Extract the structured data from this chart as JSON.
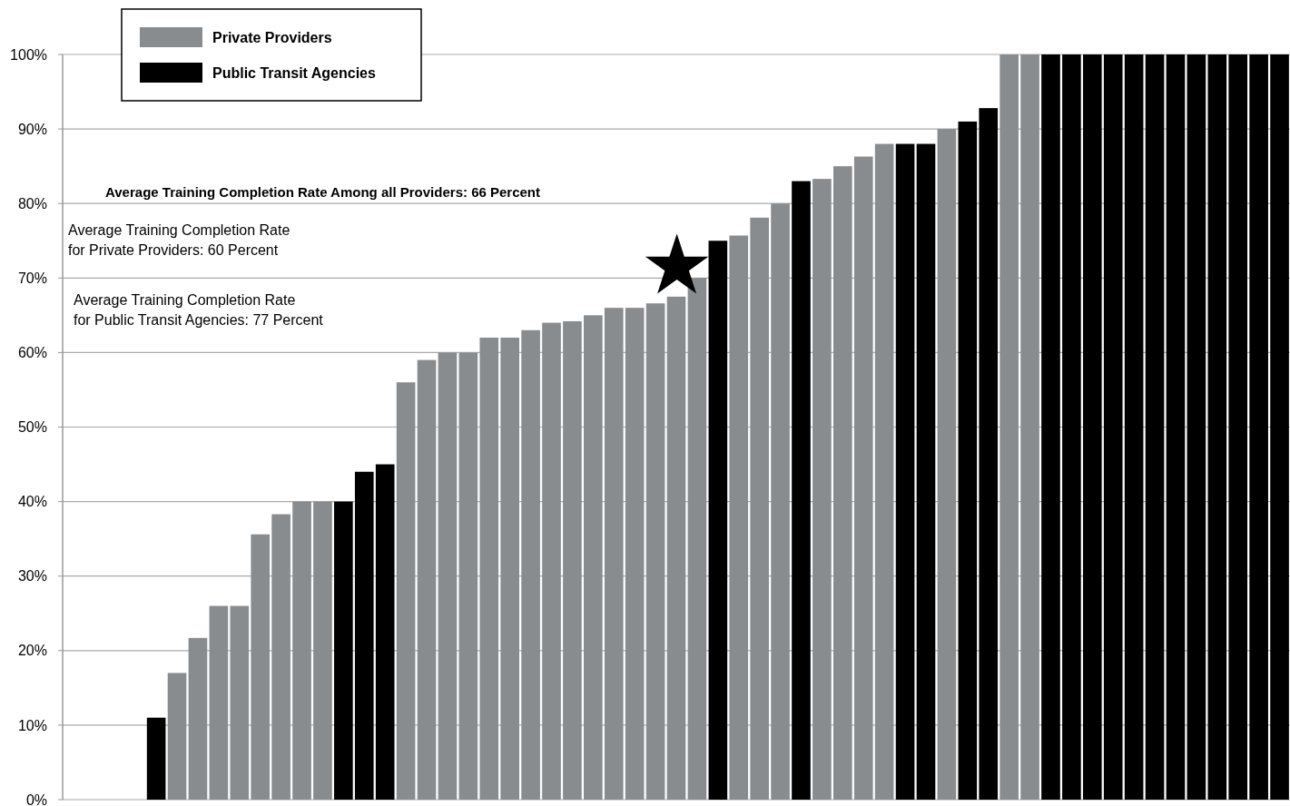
{
  "chart_data": {
    "type": "bar",
    "categories": [
      null,
      null,
      null,
      null,
      null,
      null,
      null,
      null,
      null,
      null,
      null,
      null,
      null,
      null,
      null,
      null,
      null,
      null,
      null,
      null,
      null,
      null,
      null,
      null,
      null,
      null,
      null,
      null,
      null,
      null,
      null,
      null,
      null,
      null,
      null,
      null,
      null,
      null,
      null,
      null,
      null,
      null,
      null,
      null,
      null,
      null,
      null,
      null,
      null,
      null,
      null,
      null,
      null,
      null,
      null,
      null,
      null,
      null,
      null
    ],
    "series": [
      {
        "name": "Private Providers",
        "color": "#898c8f",
        "values": [
          null,
          null,
          null,
          null,
          null,
          17,
          21.7,
          26,
          26,
          35.6,
          38.3,
          40,
          40,
          null,
          null,
          null,
          56,
          59,
          60,
          60,
          62,
          62,
          63,
          64,
          64.2,
          65,
          66,
          66,
          66.6,
          67.5,
          70,
          null,
          75.7,
          78.1,
          80,
          null,
          83.3,
          85,
          86.3,
          88,
          null,
          null,
          90,
          null,
          null,
          100,
          100,
          null,
          null,
          null,
          null,
          null,
          null,
          null,
          null,
          null,
          null,
          null,
          null
        ]
      },
      {
        "name": "Public Transit Agencies",
        "color": "#000000",
        "values": [
          null,
          null,
          null,
          null,
          11,
          null,
          null,
          null,
          null,
          null,
          null,
          null,
          null,
          40,
          44,
          45,
          null,
          null,
          null,
          null,
          null,
          null,
          null,
          null,
          null,
          null,
          null,
          null,
          null,
          null,
          null,
          75,
          null,
          null,
          null,
          83,
          null,
          null,
          null,
          null,
          88,
          88,
          null,
          91,
          92.8,
          null,
          null,
          100,
          100,
          100,
          100,
          100,
          100,
          100,
          100,
          100,
          100,
          100,
          100
        ]
      }
    ],
    "stacked": true,
    "ylim": [
      0,
      100
    ],
    "yticks": [
      {
        "value": 0,
        "label": "0%"
      },
      {
        "value": 10,
        "label": "10%"
      },
      {
        "value": 20,
        "label": "20%"
      },
      {
        "value": 30,
        "label": "30%"
      },
      {
        "value": 40,
        "label": "40%"
      },
      {
        "value": 50,
        "label": "50%"
      },
      {
        "value": 60,
        "label": "60%"
      },
      {
        "value": 70,
        "label": "70%"
      },
      {
        "value": 80,
        "label": "80%"
      },
      {
        "value": 90,
        "label": "90%"
      },
      {
        "value": 100,
        "label": "100%"
      }
    ],
    "grid": "y",
    "legend": "top left",
    "annotations": [
      "Average Training Completion Rate Among all Providers: 66 Percent",
      "Average Training Completion Rate\nfor  Private Providers: 60 Percent",
      "Average Training Completion Rate\nfor Public Transit Agencies:  77 Percent"
    ]
  }
}
